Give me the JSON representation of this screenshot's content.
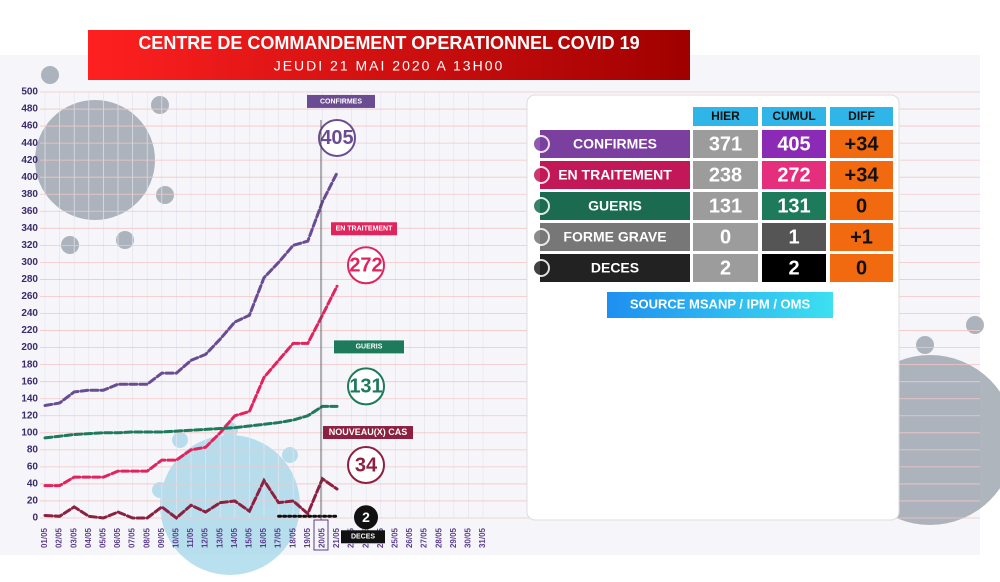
{
  "header": {
    "title": "CENTRE DE COMMANDEMENT OPERATIONNEL COVID 19",
    "subtitle": "JEUDI 21 MAI 2020 A 13H00"
  },
  "chart_data": {
    "type": "line",
    "categories": [
      "01/05",
      "02/05",
      "03/05",
      "04/05",
      "05/05",
      "06/05",
      "07/05",
      "08/05",
      "09/05",
      "10/05",
      "11/05",
      "12/05",
      "13/05",
      "14/05",
      "15/05",
      "16/05",
      "17/05",
      "18/05",
      "19/05",
      "20/05",
      "21/05",
      "22/05",
      "23/05",
      "24/05",
      "25/05",
      "26/05",
      "27/05",
      "28/05",
      "29/05",
      "30/05",
      "31/05"
    ],
    "ylim": [
      0,
      500
    ],
    "yticks": [
      0,
      20,
      40,
      60,
      80,
      100,
      120,
      140,
      160,
      180,
      200,
      220,
      240,
      260,
      280,
      300,
      320,
      340,
      360,
      380,
      400,
      420,
      440,
      460,
      480,
      500
    ],
    "grid": true,
    "series": [
      {
        "name": "CONFIRMES",
        "color": "#6a4c93",
        "values": [
          132,
          135,
          148,
          150,
          150,
          157,
          157,
          157,
          170,
          170,
          185,
          192,
          210,
          230,
          238,
          282,
          300,
          320,
          325,
          371,
          405,
          null,
          null,
          null,
          null,
          null,
          null,
          null,
          null,
          null,
          null
        ]
      },
      {
        "name": "EN TRAITEMENT",
        "color": "#e0245e",
        "values": [
          38,
          38,
          48,
          48,
          48,
          55,
          55,
          55,
          68,
          68,
          80,
          83,
          100,
          120,
          125,
          165,
          185,
          205,
          205,
          238,
          272,
          null,
          null,
          null,
          null,
          null,
          null,
          null,
          null,
          null,
          null
        ]
      },
      {
        "name": "GUERIS",
        "color": "#1d7a5a",
        "values": [
          94,
          96,
          98,
          99,
          100,
          100,
          101,
          101,
          101,
          102,
          103,
          104,
          105,
          106,
          108,
          110,
          112,
          115,
          120,
          131,
          131,
          null,
          null,
          null,
          null,
          null,
          null,
          null,
          null,
          null,
          null
        ]
      },
      {
        "name": "NOUVEAU(X) CAS",
        "color": "#8b2040",
        "values": [
          3,
          2,
          13,
          2,
          0,
          7,
          0,
          0,
          13,
          0,
          15,
          7,
          18,
          20,
          8,
          44,
          18,
          20,
          5,
          46,
          34,
          null,
          null,
          null,
          null,
          null,
          null,
          null,
          null,
          null,
          null
        ]
      },
      {
        "name": "DECES",
        "color": "#111111",
        "values": [
          null,
          null,
          null,
          null,
          null,
          null,
          null,
          null,
          null,
          null,
          null,
          null,
          null,
          null,
          null,
          null,
          2,
          2,
          2,
          2,
          2,
          null,
          null,
          null,
          null,
          null,
          null,
          null,
          null,
          null,
          null
        ]
      }
    ]
  },
  "table": {
    "headers": [
      "HIER",
      "CUMUL",
      "DIFF"
    ],
    "rows": [
      {
        "label": "CONFIRMES",
        "hier": "371",
        "cumul": "405",
        "diff": "+34"
      },
      {
        "label": "EN TRAITEMENT",
        "hier": "238",
        "cumul": "272",
        "diff": "+34"
      },
      {
        "label": "GUERIS",
        "hier": "131",
        "cumul": "131",
        "diff": "0"
      },
      {
        "label": "FORME GRAVE",
        "hier": "0",
        "cumul": "1",
        "diff": "+1"
      },
      {
        "label": "DECES",
        "hier": "2",
        "cumul": "2",
        "diff": "0"
      }
    ],
    "source": "SOURCE MSANP / IPM / OMS"
  }
}
